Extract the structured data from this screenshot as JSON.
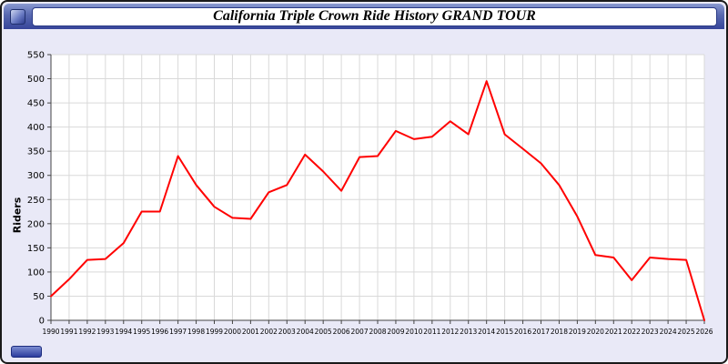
{
  "window": {
    "title": "California Triple Crown Ride History GRAND TOUR"
  },
  "chart_data": {
    "type": "line",
    "title": "California Triple Crown Ride History GRAND TOUR",
    "xlabel": "",
    "ylabel": "Riders",
    "ylim": [
      0,
      550
    ],
    "yticks": [
      0,
      50,
      100,
      150,
      200,
      250,
      300,
      350,
      400,
      450,
      500,
      550
    ],
    "grid": true,
    "legend": "none",
    "line_color": "#ff0000",
    "grid_color": "#d9d9d9",
    "axis_color": "#444444",
    "plot_background": "#ffffff",
    "x": [
      1990,
      1991,
      1992,
      1993,
      1994,
      1995,
      1996,
      1997,
      1998,
      1999,
      2000,
      2001,
      2002,
      2003,
      2004,
      2005,
      2006,
      2007,
      2008,
      2009,
      2010,
      2011,
      2012,
      2013,
      2014,
      2015,
      2016,
      2017,
      2018,
      2019,
      2020,
      2021,
      2022,
      2023,
      2024,
      2025,
      2026
    ],
    "series": [
      {
        "name": "Riders",
        "values": [
          50,
          85,
          125,
          127,
          160,
          225,
          225,
          340,
          280,
          235,
          212,
          210,
          265,
          280,
          343,
          308,
          268,
          338,
          340,
          392,
          375,
          380,
          412,
          385,
          495,
          385,
          355,
          325,
          280,
          215,
          135,
          130,
          83,
          130,
          127,
          125,
          0
        ]
      }
    ]
  }
}
